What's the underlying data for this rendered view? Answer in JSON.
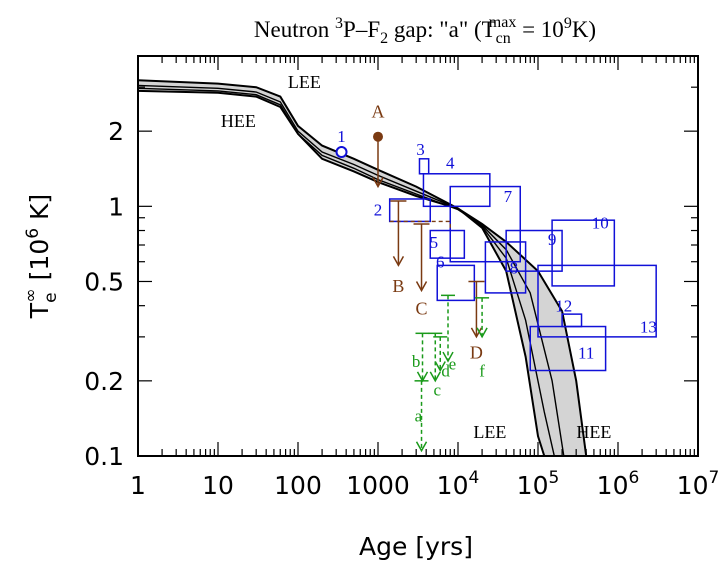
{
  "chart_data": {
    "type": "line",
    "title": {
      "prefix": "Neutron ",
      "sup1": "3",
      "mid1": "P–F",
      "sub1": "2",
      "mid2": " gap: \"a\"   (T",
      "sub2": "cn",
      "sup2": "max",
      "mid3": " = 10",
      "sup3": "9",
      "suffix": "K)"
    },
    "xlabel": "Age [yrs]",
    "ylabel": {
      "base": "T",
      "sub": "e",
      "sup": "∞",
      "rest": " [10",
      "sup2": "6",
      "rest2": " K]"
    },
    "xscale": "log",
    "yscale": "log",
    "xlim": [
      1,
      10000000
    ],
    "ylim": [
      0.1,
      4
    ],
    "xticks": [
      {
        "value": 1,
        "label": "1"
      },
      {
        "value": 10,
        "label": "10"
      },
      {
        "value": 100,
        "label": "100"
      },
      {
        "value": 1000,
        "label": "1000"
      },
      {
        "value": 10000,
        "base": "10",
        "exp": "4"
      },
      {
        "value": 100000,
        "base": "10",
        "exp": "5"
      },
      {
        "value": 1000000,
        "base": "10",
        "exp": "6"
      },
      {
        "value": 10000000,
        "base": "10",
        "exp": "7"
      }
    ],
    "yticks": [
      {
        "value": 0.1,
        "label": "0.1"
      },
      {
        "value": 0.2,
        "label": "0.2"
      },
      {
        "value": 0.5,
        "label": "0.5"
      },
      {
        "value": 1,
        "label": "1"
      },
      {
        "value": 2,
        "label": "2"
      }
    ],
    "band": {
      "color": "#d4d4d4",
      "lee": [
        [
          1,
          3.2
        ],
        [
          10,
          3.1
        ],
        [
          30,
          3.0
        ],
        [
          60,
          2.75
        ],
        [
          100,
          2.1
        ],
        [
          200,
          1.75
        ],
        [
          500,
          1.55
        ],
        [
          1000,
          1.4
        ],
        [
          3000,
          1.2
        ],
        [
          10000,
          0.98
        ],
        [
          20000,
          0.82
        ],
        [
          40000,
          0.55
        ],
        [
          70000,
          0.25
        ],
        [
          100000,
          0.12
        ],
        [
          120000,
          0.1
        ]
      ],
      "hee": [
        [
          1,
          2.9
        ],
        [
          10,
          2.85
        ],
        [
          30,
          2.75
        ],
        [
          60,
          2.5
        ],
        [
          100,
          1.95
        ],
        [
          200,
          1.55
        ],
        [
          500,
          1.38
        ],
        [
          1000,
          1.25
        ],
        [
          3000,
          1.1
        ],
        [
          10000,
          0.98
        ],
        [
          20000,
          0.85
        ],
        [
          40000,
          0.72
        ],
        [
          100000,
          0.55
        ],
        [
          200000,
          0.38
        ],
        [
          300000,
          0.2
        ],
        [
          400000,
          0.1
        ]
      ]
    },
    "inner_curves": [
      [
        [
          1,
          3.05
        ],
        [
          10,
          2.97
        ],
        [
          30,
          2.87
        ],
        [
          60,
          2.62
        ],
        [
          100,
          2.0
        ],
        [
          200,
          1.65
        ],
        [
          500,
          1.47
        ],
        [
          1000,
          1.33
        ],
        [
          3000,
          1.15
        ],
        [
          10000,
          0.98
        ],
        [
          20000,
          0.83
        ],
        [
          40000,
          0.62
        ],
        [
          70000,
          0.35
        ],
        [
          120000,
          0.15
        ],
        [
          160000,
          0.1
        ]
      ],
      [
        [
          1,
          2.97
        ],
        [
          10,
          2.9
        ],
        [
          30,
          2.8
        ],
        [
          60,
          2.55
        ],
        [
          100,
          1.95
        ],
        [
          200,
          1.6
        ],
        [
          500,
          1.42
        ],
        [
          1000,
          1.28
        ],
        [
          3000,
          1.12
        ],
        [
          10000,
          0.97
        ],
        [
          20000,
          0.84
        ],
        [
          40000,
          0.67
        ],
        [
          80000,
          0.45
        ],
        [
          150000,
          0.2
        ],
        [
          210000,
          0.1
        ]
      ]
    ],
    "curve_labels": [
      {
        "text": "LEE",
        "x": 120,
        "y": 3.15
      },
      {
        "text": "HEE",
        "x": 18,
        "y": 2.2
      },
      {
        "text": "LEE",
        "x": 25000,
        "y": 0.125
      },
      {
        "text": "HEE",
        "x": 500000,
        "y": 0.125
      }
    ],
    "blue_color": "#1010d8",
    "brown_color": "#7a3a12",
    "green_color": "#1a9a1a",
    "blue_point": {
      "label": "1",
      "x": 350,
      "y": 1.65
    },
    "blue_boxes": [
      {
        "label": "2",
        "x0": 1400,
        "x1": 4500,
        "y0": 0.87,
        "y1": 1.07,
        "lx": 1000,
        "ly": 0.97
      },
      {
        "label": "3",
        "x0": 3300,
        "x1": 4300,
        "y0": 1.35,
        "y1": 1.55,
        "lx": 3400,
        "ly": 1.7
      },
      {
        "label": "4",
        "x0": 3700,
        "x1": 25000,
        "y0": 1.0,
        "y1": 1.35,
        "lx": 8000,
        "ly": 1.5
      },
      {
        "label": "5",
        "x0": 4500,
        "x1": 12000,
        "y0": 0.62,
        "y1": 0.8,
        "lx": 5000,
        "ly": 0.72
      },
      {
        "label": "6",
        "x0": 5500,
        "x1": 16000,
        "y0": 0.42,
        "y1": 0.58,
        "lx": 6000,
        "ly": 0.6
      },
      {
        "label": "7",
        "x0": 8000,
        "x1": 60000,
        "y0": 0.6,
        "y1": 1.2,
        "lx": 42000,
        "ly": 1.1
      },
      {
        "label": "8",
        "x0": 22000,
        "x1": 70000,
        "y0": 0.45,
        "y1": 0.72,
        "lx": 50000,
        "ly": 0.57
      },
      {
        "label": "9",
        "x0": 40000,
        "x1": 200000,
        "y0": 0.55,
        "y1": 0.8,
        "lx": 150000,
        "ly": 0.74
      },
      {
        "label": "10",
        "x0": 150000,
        "x1": 900000,
        "y0": 0.48,
        "y1": 0.88,
        "lx": 600000,
        "ly": 0.86
      },
      {
        "label": "11",
        "x0": 80000,
        "x1": 700000,
        "y0": 0.22,
        "y1": 0.33,
        "lx": 400000,
        "ly": 0.26
      },
      {
        "label": "12",
        "x0": 200000,
        "x1": 350000,
        "y0": 0.33,
        "y1": 0.37,
        "lx": 210000,
        "ly": 0.4
      },
      {
        "label": "13",
        "x0": 100000,
        "x1": 3000000,
        "y0": 0.3,
        "y1": 0.58,
        "lx": 2400000,
        "ly": 0.33
      }
    ],
    "brown_markers": [
      {
        "label": "A",
        "x": 1000,
        "y": 1.9,
        "y_to": 1.2,
        "type": "dot",
        "lx": 1000,
        "ly": 2.4
      },
      {
        "label": "B",
        "x": 1800,
        "y": 1.05,
        "y_to": 0.58,
        "type": "bar",
        "lx": 1800,
        "ly": 0.48
      },
      {
        "label": "C",
        "x": 3500,
        "y": 0.85,
        "y_to": 0.46,
        "type": "bar",
        "lx": 3500,
        "ly": 0.39
      },
      {
        "label": "D",
        "x": 17000,
        "y": 0.5,
        "y_to": 0.3,
        "type": "bar",
        "lx": 17000,
        "ly": 0.26
      }
    ],
    "green_markers": [
      {
        "label": "a",
        "x": 3500,
        "y": 0.2,
        "y_to": 0.105,
        "lx": 3200,
        "ly": 0.145
      },
      {
        "label": "b",
        "x": 3600,
        "y": 0.31,
        "y_to": 0.2,
        "lx": 3000,
        "ly": 0.24
      },
      {
        "label": "c",
        "x": 5200,
        "y": 0.31,
        "y_to": 0.2,
        "lx": 5500,
        "ly": 0.185
      },
      {
        "label": "d",
        "x": 6000,
        "y": 0.3,
        "y_to": 0.22,
        "lx": 7000,
        "ly": 0.22
      },
      {
        "label": "e",
        "x": 7500,
        "y": 0.44,
        "y_to": 0.24,
        "lx": 8500,
        "ly": 0.235
      },
      {
        "label": "f",
        "x": 20000,
        "y": 0.43,
        "y_to": 0.3,
        "lx": 20000,
        "ly": 0.22
      }
    ]
  }
}
